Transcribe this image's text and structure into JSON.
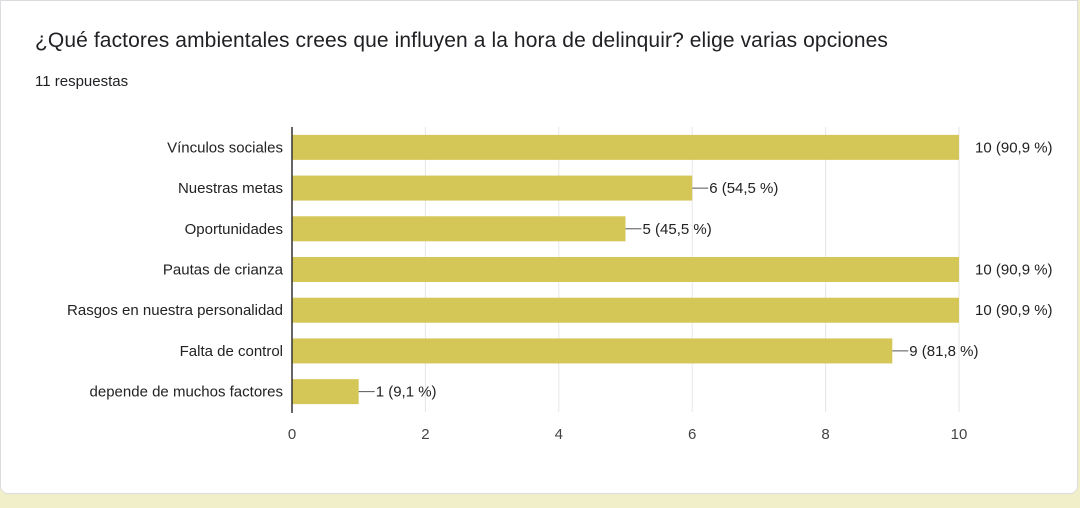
{
  "question": {
    "title": "¿Qué factores ambientales crees que influyen a la hora de delinquir? elige varias opciones",
    "responses": "11 respuestas"
  },
  "colors": {
    "bar": "#d4c657",
    "axis": "#333333",
    "grid": "#e6e6e6",
    "background": "#f1efc9"
  },
  "chart_data": {
    "type": "bar",
    "orientation": "horizontal",
    "categories": [
      "Vínculos sociales",
      "Nuestras metas",
      "Oportunidades",
      "Pautas de crianza",
      "Rasgos en nuestra personalidad",
      "Falta de control",
      "depende de muchos factores"
    ],
    "values": [
      10,
      6,
      5,
      10,
      10,
      9,
      1
    ],
    "data_labels": [
      "10 (90,9 %)",
      "6 (54,5 %)",
      "5 (45,5 %)",
      "10 (90,9 %)",
      "10 (90,9 %)",
      "9 (81,8 %)",
      "1 (9,1 %)"
    ],
    "xlim": [
      0,
      10
    ],
    "xticks": [
      0,
      2,
      4,
      6,
      8,
      10
    ],
    "grid": true
  }
}
